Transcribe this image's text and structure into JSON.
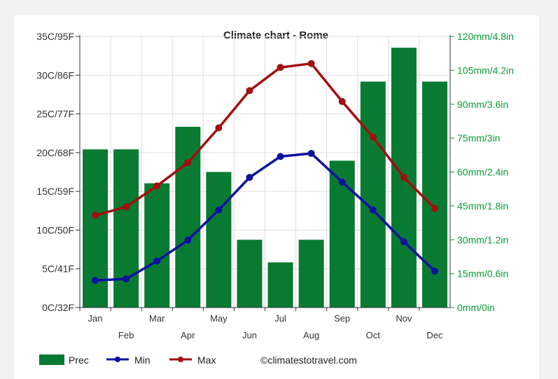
{
  "colors": {
    "prec": "#097a31",
    "min": "#1010a0",
    "max": "#a01010",
    "grid": "#dddddd",
    "right_axis": "#0a9a3a"
  },
  "legend": {
    "prec": "Prec",
    "min": "Min",
    "max": "Max",
    "credit": "©climatestotravel.com"
  },
  "chart_data": {
    "type": "bar",
    "title": "Climate chart - Rome",
    "categories": [
      "Jan",
      "Feb",
      "Mar",
      "Apr",
      "May",
      "Jun",
      "Jul",
      "Aug",
      "Sep",
      "Oct",
      "Nov",
      "Dec"
    ],
    "left_axis": {
      "ylim": [
        0,
        35
      ],
      "ticks": [
        0,
        5,
        10,
        15,
        20,
        25,
        30,
        35
      ],
      "tick_labels": [
        "0C/32F",
        "5C/41F",
        "10C/50F",
        "15C/59F",
        "20C/68F",
        "25C/77F",
        "30C/86F",
        "35C/95F"
      ]
    },
    "right_axis": {
      "ylim": [
        0,
        120
      ],
      "ticks": [
        0,
        15,
        30,
        45,
        60,
        75,
        90,
        105,
        120
      ],
      "tick_labels": [
        "0mm/0in",
        "15mm/0.6in",
        "30mm/1.2in",
        "45mm/1.8in",
        "60mm/2.4in",
        "75mm/3in",
        "90mm/3.6in",
        "105mm/4.2in",
        "120mm/4.8in"
      ]
    },
    "series": [
      {
        "name": "Prec",
        "kind": "bar",
        "axis": "right",
        "values": [
          70,
          70,
          55,
          80,
          60,
          30,
          20,
          30,
          65,
          100,
          115,
          100
        ]
      },
      {
        "name": "Min",
        "kind": "line",
        "axis": "left",
        "values": [
          3.5,
          3.7,
          6.0,
          8.7,
          12.6,
          16.8,
          19.5,
          19.9,
          16.2,
          12.6,
          8.5,
          4.7
        ]
      },
      {
        "name": "Max",
        "kind": "line",
        "axis": "left",
        "values": [
          11.9,
          13.0,
          15.7,
          18.7,
          23.2,
          28.0,
          31.0,
          31.5,
          26.6,
          22.0,
          16.8,
          12.8
        ]
      }
    ],
    "grid": true,
    "legend_position": "bottom-left"
  }
}
